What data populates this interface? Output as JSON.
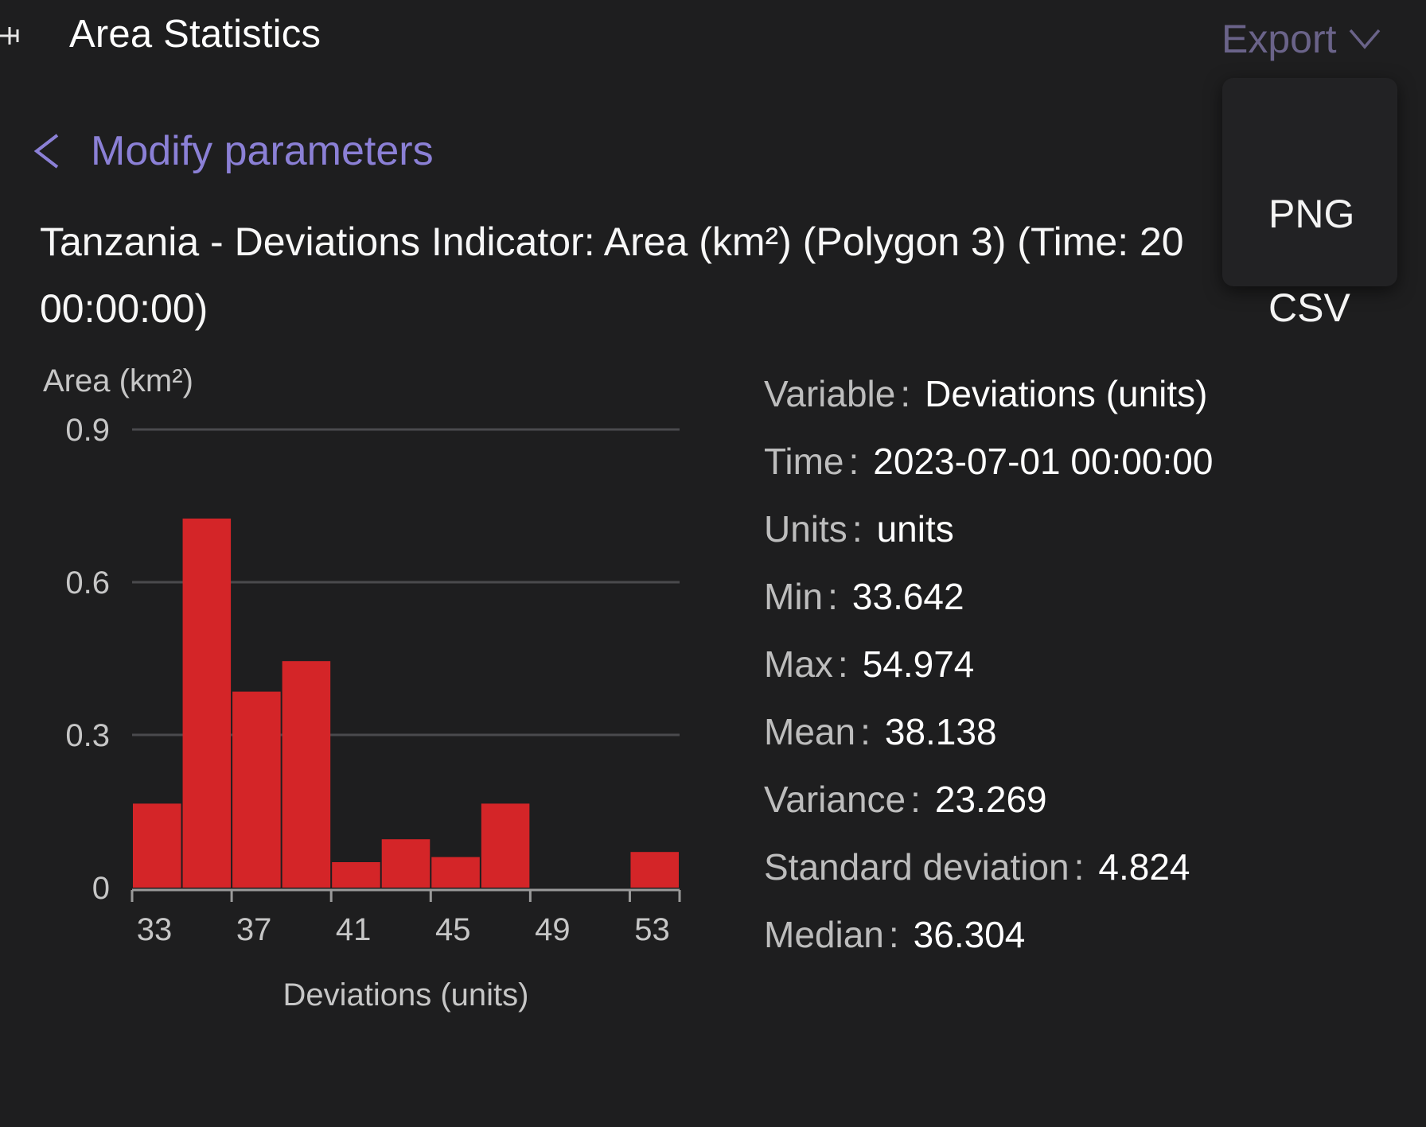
{
  "header": {
    "title": "Area Statistics",
    "export_label": "Export"
  },
  "export_menu": {
    "items": [
      "PNG",
      "CSV"
    ]
  },
  "back_link": {
    "label": "Modify parameters"
  },
  "chart_title": {
    "line1": "Tanzania - Deviations Indicator: Area (km²) (Polygon 3) (Time: 20",
    "line2": "00:00:00)"
  },
  "stats": {
    "separator": ":",
    "rows": [
      {
        "key": "Variable",
        "value": "Deviations (units)"
      },
      {
        "key": "Time",
        "value": "2023-07-01 00:00:00"
      },
      {
        "key": "Units",
        "value": "units"
      },
      {
        "key": "Min",
        "value": "33.642"
      },
      {
        "key": "Max",
        "value": "54.974"
      },
      {
        "key": "Mean",
        "value": "38.138"
      },
      {
        "key": "Variance",
        "value": "23.269"
      },
      {
        "key": "Standard deviation",
        "value": "4.824"
      },
      {
        "key": "Median",
        "value": "36.304"
      }
    ]
  },
  "colors": {
    "bar": "#d42528",
    "accent": "#8b80d6",
    "grid": "#4a4a4d",
    "axis_text": "#c6c6c6"
  },
  "chart_data": {
    "type": "bar",
    "title": "",
    "ylabel": "Area (km²)",
    "xlabel": "Deviations (units)",
    "ylim": [
      0,
      0.9
    ],
    "yticks": [
      0,
      0.3,
      0.6,
      0.9
    ],
    "xticks": [
      33,
      37,
      41,
      45,
      49,
      53
    ],
    "grid": true,
    "bins": [
      {
        "x0": 33,
        "x1": 35,
        "value": 0.165
      },
      {
        "x0": 35,
        "x1": 37,
        "value": 0.725
      },
      {
        "x0": 37,
        "x1": 39,
        "value": 0.385
      },
      {
        "x0": 39,
        "x1": 41,
        "value": 0.445
      },
      {
        "x0": 41,
        "x1": 43,
        "value": 0.05
      },
      {
        "x0": 43,
        "x1": 45,
        "value": 0.095
      },
      {
        "x0": 45,
        "x1": 47,
        "value": 0.06
      },
      {
        "x0": 47,
        "x1": 49,
        "value": 0.165
      },
      {
        "x0": 49,
        "x1": 51,
        "value": 0
      },
      {
        "x0": 51,
        "x1": 53,
        "value": 0
      },
      {
        "x0": 53,
        "x1": 55,
        "value": 0.07
      }
    ]
  }
}
